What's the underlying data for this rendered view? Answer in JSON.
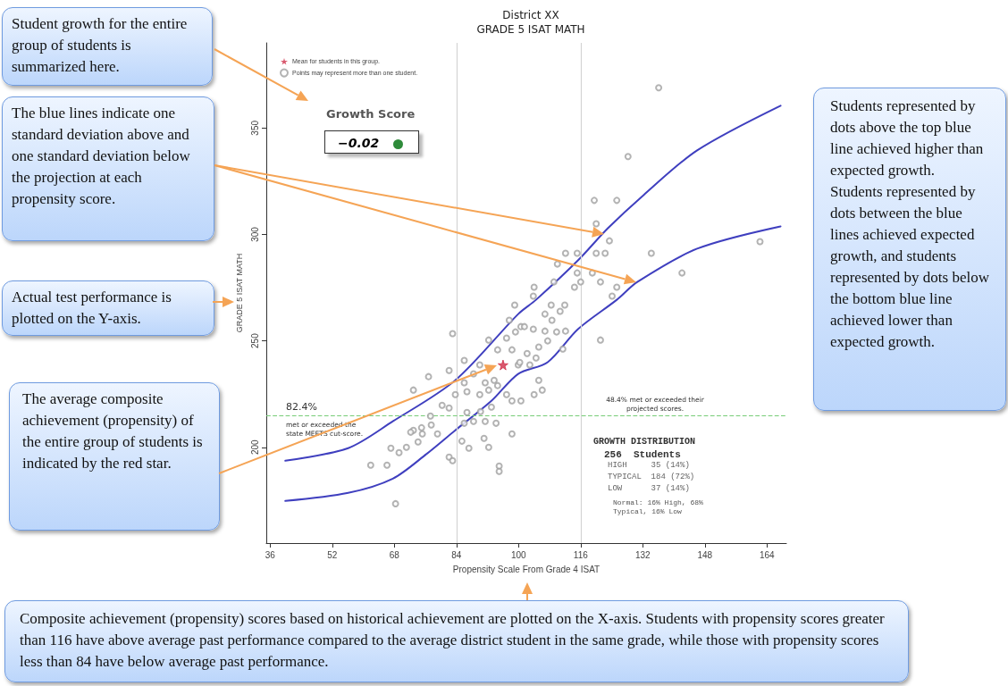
{
  "chart_data": {
    "type": "scatter",
    "title": "District XX",
    "subtitle": "GRADE 5 ISAT MATH",
    "xlabel": "Propensity Scale From Grade 4 ISAT",
    "ylabel": "GRADE 5 ISAT MATH",
    "xlim": [
      35,
      169
    ],
    "xticks": [
      36,
      52,
      68,
      84,
      100,
      116,
      132,
      148,
      164
    ],
    "ylim": [
      155,
      390
    ],
    "yticks": [
      200,
      250,
      300,
      350
    ],
    "grid": false,
    "legend": "top left",
    "series": [
      {
        "name": "Mean for students in this group.",
        "marker": "star",
        "color": "#d0304a",
        "x": [
          96
        ],
        "values": [
          238.7
        ]
      },
      {
        "name": "Points may represent more than one student.",
        "marker": "circle",
        "color": "#a0a0a0",
        "x": [
          83.0,
          76.8,
          82.1,
          72.9,
          80.3,
          82.1,
          77.3,
          77.5,
          75.0,
          72.9,
          72.2,
          75.2,
          79.1,
          74.1,
          71.1,
          67.1,
          69.2,
          61.9,
          66.1,
          68.3,
          82.1,
          83.0,
          85.4,
          87.2,
          92.3,
          91.1,
          95.0,
          95.0,
          98.3,
          86.0,
          88.4,
          91.4,
          94.2,
          86.7,
          90.2,
          93.0,
          83.7,
          86.7,
          90.0,
          92.3,
          94.6,
          96.9,
          98.3,
          86.0,
          88.4,
          91.4,
          93.7,
          86.0,
          90.0,
          92.3,
          94.6,
          96.9,
          98.3,
          99.2,
          99.0,
          97.6,
          99.9,
          100.6,
          103.8,
          108.4,
          106.8,
          110.7,
          111.9,
          108.6,
          101.5,
          103.8,
          106.8,
          109.8,
          112.1,
          105.2,
          107.5,
          111.4,
          102.2,
          104.5,
          100.3,
          102.9,
          105.2,
          106.1,
          104.0,
          100.6,
          121.1,
          136.1,
          128.2,
          119.5,
          125.3,
          120.0,
          123.4,
          112.1,
          115.1,
          120.0,
          122.3,
          134.2,
          110.0,
          115.1,
          119.0,
          142.1,
          162.2,
          104.0,
          109.1,
          114.4,
          121.1,
          125.3,
          116.0,
          124.1
        ],
        "values": [
          253.4,
          233.2,
          236.1,
          226.9,
          219.7,
          218.5,
          214.7,
          210.5,
          209.2,
          208.0,
          207.1,
          206.3,
          206.3,
          202.5,
          200.0,
          199.6,
          197.5,
          191.6,
          191.6,
          173.5,
          195.4,
          193.7,
          202.9,
          199.6,
          200.0,
          204.2,
          191.2,
          188.7,
          206.3,
          211.3,
          212.2,
          212.2,
          211.3,
          216.4,
          216.8,
          218.9,
          224.8,
          226.1,
          224.8,
          226.9,
          229.0,
          224.8,
          221.8,
          230.3,
          234.5,
          230.3,
          231.5,
          240.8,
          238.7,
          250.4,
          245.8,
          251.3,
          245.8,
          254.2,
          266.8,
          259.7,
          238.7,
          256.7,
          271.0,
          266.8,
          262.6,
          263.9,
          266.8,
          259.7,
          256.7,
          255.5,
          254.6,
          254.2,
          254.6,
          247.1,
          250.0,
          246.2,
          244.1,
          242.0,
          239.9,
          238.7,
          231.5,
          226.9,
          224.8,
          221.8,
          250.4,
          368.9,
          336.6,
          316.0,
          316.0,
          305.0,
          297.0,
          291.2,
          291.2,
          291.2,
          291.2,
          291.2,
          286.1,
          281.9,
          281.9,
          281.9,
          296.6,
          275.2,
          277.7,
          275.2,
          277.7,
          275.2,
          277.7,
          271.0
        ]
      },
      {
        "type": "line",
        "marker": "none",
        "line_style": "solid",
        "color": "#3f3fbf",
        "x": [
          39.9,
          56.1,
          67.6,
          83.7,
          99.9,
          104.5,
          115.3,
          123.0,
          132.2,
          146.0,
          167.5
        ],
        "values": [
          193.7,
          199.6,
          212.2,
          231.5,
          262.6,
          269.3,
          287.8,
          302.9,
          318.5,
          339.5,
          360.5
        ]
      },
      {
        "type": "line",
        "marker": "none",
        "line_style": "solid",
        "color": "#3f3fbf",
        "x": [
          39.9,
          56.1,
          67.6,
          76.1,
          83.7,
          93.0,
          99.9,
          107.5,
          115.3,
          125.3,
          130.6,
          146.0,
          167.5
        ],
        "values": [
          174.8,
          178.6,
          185.3,
          196.6,
          208.0,
          221.8,
          234.5,
          240.0,
          255.5,
          269.3,
          277.7,
          293.3,
          303.8
        ]
      }
    ],
    "ref_lines": [
      {
        "axis": "x",
        "value": 84,
        "color": "#d4d4d4",
        "line_style": "solid"
      },
      {
        "axis": "x",
        "value": 116,
        "color": "#d4d4d4",
        "line_style": "solid"
      },
      {
        "axis": "y",
        "value": 215,
        "color": "#77cc77",
        "line_style": "dashed"
      }
    ],
    "annotations": [
      "Student growth for the entire group of students is summarized here.",
      "The blue lines indicate one standard deviation above and one standard deviation below the projection at each propensity score.",
      "Actual test performance is plotted on the Y-axis.",
      "The average composite achievement (propensity) of the entire group of students is indicated by the red star.",
      "Students represented by dots above the top blue line achieved higher than expected growth. Students represented by dots between the blue lines achieved expected growth, and students represented by dots below the bottom blue line achieved lower than expected growth.",
      "Composite achievement (propensity) scores based on historical achievement are plotted on the X-axis. Students with propensity scores greater than 116 have above average past performance compared to the average district student in the same grade, while those with propensity scores less than 84 have below average past performance.",
      "Growth Score",
      "−0.02",
      "82.4%",
      "met or exceeded the state MEETS cut-score.",
      "48.4% met or exceeded their projected scores.",
      "GROWTH DISTRIBUTION",
      "256  Students",
      "HIGH     35 (14%)",
      "TYPICAL  184 (72%)",
      "LOW      37 (14%)",
      "Normal: 16% High, 68% Typical, 16% Low"
    ]
  }
}
